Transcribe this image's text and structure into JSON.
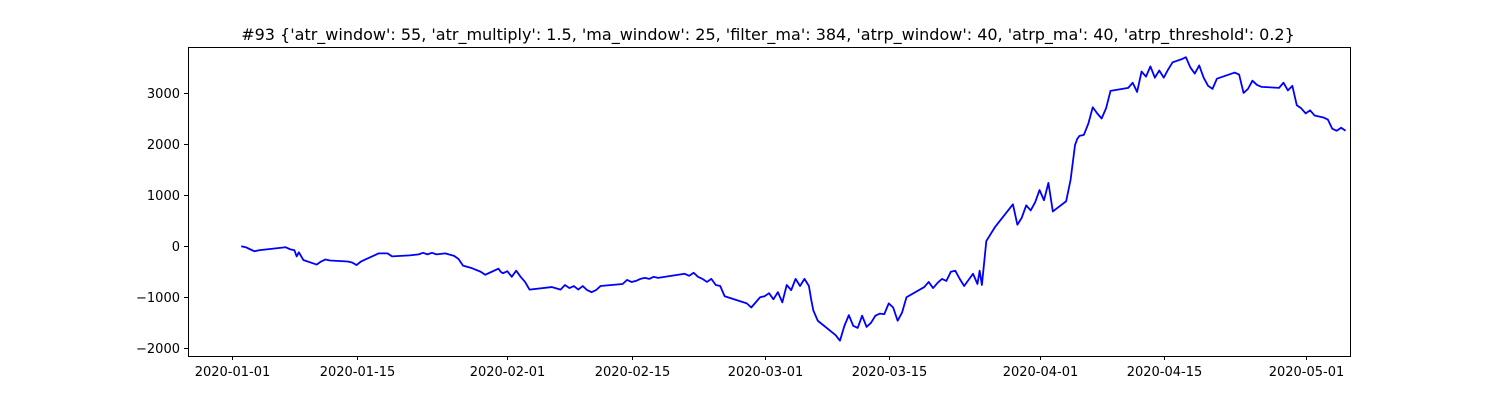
{
  "chart_data": {
    "type": "line",
    "title": "#93 {'atr_window': 55, 'atr_multiply': 1.5, 'ma_window': 25, 'filter_ma': 384, 'atrp_window': 40, 'atrp_ma': 40, 'atrp_threshold': 0.2}",
    "xlabel": "",
    "ylabel": "",
    "x_ticks": [
      "2020-01-01",
      "2020-01-15",
      "2020-02-01",
      "2020-02-15",
      "2020-03-01",
      "2020-03-15",
      "2020-04-01",
      "2020-04-15",
      "2020-05-01"
    ],
    "y_ticks": [
      -2000,
      -1000,
      0,
      1000,
      2000,
      3000
    ],
    "xlim": [
      "2019-12-27",
      "2020-05-06"
    ],
    "ylim": [
      -2150,
      3900
    ],
    "grid": false,
    "series": [
      {
        "color": "#0000ff",
        "points": [
          [
            "2020-01-02",
            0
          ],
          [
            "2020-01-02 12:00",
            -20
          ],
          [
            "2020-01-03",
            -60
          ],
          [
            "2020-01-03 12:00",
            -100
          ],
          [
            "2020-01-04",
            -80
          ],
          [
            "2020-01-07",
            -20
          ],
          [
            "2020-01-07 12:00",
            -60
          ],
          [
            "2020-01-08",
            -80
          ],
          [
            "2020-01-08 06:00",
            -200
          ],
          [
            "2020-01-08 12:00",
            -120
          ],
          [
            "2020-01-09",
            -270
          ],
          [
            "2020-01-10",
            -330
          ],
          [
            "2020-01-10 12:00",
            -360
          ],
          [
            "2020-01-11",
            -300
          ],
          [
            "2020-01-11 12:00",
            -260
          ],
          [
            "2020-01-12",
            -280
          ],
          [
            "2020-01-14",
            -300
          ],
          [
            "2020-01-14 12:00",
            -320
          ],
          [
            "2020-01-15",
            -370
          ],
          [
            "2020-01-15 12:00",
            -300
          ],
          [
            "2020-01-16",
            -260
          ],
          [
            "2020-01-17",
            -180
          ],
          [
            "2020-01-17 12:00",
            -140
          ],
          [
            "2020-01-18 12:00",
            -140
          ],
          [
            "2020-01-19",
            -200
          ],
          [
            "2020-01-21",
            -180
          ],
          [
            "2020-01-22",
            -160
          ],
          [
            "2020-01-22 12:00",
            -130
          ],
          [
            "2020-01-23",
            -160
          ],
          [
            "2020-01-23 12:00",
            -130
          ],
          [
            "2020-01-24",
            -160
          ],
          [
            "2020-01-25",
            -140
          ],
          [
            "2020-01-26",
            -190
          ],
          [
            "2020-01-26 12:00",
            -250
          ],
          [
            "2020-01-27",
            -380
          ],
          [
            "2020-01-28",
            -430
          ],
          [
            "2020-01-29",
            -500
          ],
          [
            "2020-01-29 12:00",
            -560
          ],
          [
            "2020-01-30",
            -520
          ],
          [
            "2020-01-31",
            -440
          ],
          [
            "2020-01-31 06:00",
            -500
          ],
          [
            "2020-01-31 12:00",
            -530
          ],
          [
            "2020-02-01",
            -490
          ],
          [
            "2020-02-01 12:00",
            -600
          ],
          [
            "2020-02-02",
            -480
          ],
          [
            "2020-02-02 12:00",
            -600
          ],
          [
            "2020-02-03",
            -700
          ],
          [
            "2020-02-03 12:00",
            -850
          ],
          [
            "2020-02-06",
            -800
          ],
          [
            "2020-02-07",
            -850
          ],
          [
            "2020-02-07 12:00",
            -760
          ],
          [
            "2020-02-08",
            -820
          ],
          [
            "2020-02-08 12:00",
            -780
          ],
          [
            "2020-02-09",
            -850
          ],
          [
            "2020-02-09 12:00",
            -780
          ],
          [
            "2020-02-10",
            -860
          ],
          [
            "2020-02-10 12:00",
            -900
          ],
          [
            "2020-02-11",
            -860
          ],
          [
            "2020-02-11 12:00",
            -780
          ],
          [
            "2020-02-14",
            -740
          ],
          [
            "2020-02-14 12:00",
            -660
          ],
          [
            "2020-02-15",
            -700
          ],
          [
            "2020-02-15 12:00",
            -680
          ],
          [
            "2020-02-16",
            -640
          ],
          [
            "2020-02-16 12:00",
            -620
          ],
          [
            "2020-02-17",
            -640
          ],
          [
            "2020-02-17 12:00",
            -600
          ],
          [
            "2020-02-18",
            -620
          ],
          [
            "2020-02-21",
            -540
          ],
          [
            "2020-02-21 12:00",
            -580
          ],
          [
            "2020-02-22",
            -520
          ],
          [
            "2020-02-22 12:00",
            -600
          ],
          [
            "2020-02-23",
            -640
          ],
          [
            "2020-02-23 12:00",
            -700
          ],
          [
            "2020-02-24",
            -640
          ],
          [
            "2020-02-24 12:00",
            -760
          ],
          [
            "2020-02-25",
            -780
          ],
          [
            "2020-02-25 12:00",
            -980
          ],
          [
            "2020-02-28",
            -1120
          ],
          [
            "2020-02-28 12:00",
            -1200
          ],
          [
            "2020-02-29",
            -1100
          ],
          [
            "2020-02-29 12:00",
            -1000
          ],
          [
            "2020-03-01",
            -980
          ],
          [
            "2020-03-01 12:00",
            -920
          ],
          [
            "2020-03-02",
            -1040
          ],
          [
            "2020-03-02 12:00",
            -900
          ],
          [
            "2020-03-03",
            -1100
          ],
          [
            "2020-03-03 12:00",
            -760
          ],
          [
            "2020-03-04",
            -860
          ],
          [
            "2020-03-04 12:00",
            -640
          ],
          [
            "2020-03-05",
            -780
          ],
          [
            "2020-03-05 12:00",
            -640
          ],
          [
            "2020-03-06",
            -780
          ],
          [
            "2020-03-06 06:00",
            -1040
          ],
          [
            "2020-03-06 12:00",
            -1260
          ],
          [
            "2020-03-07",
            -1460
          ],
          [
            "2020-03-09",
            -1740
          ],
          [
            "2020-03-09 12:00",
            -1850
          ],
          [
            "2020-03-10",
            -1560
          ],
          [
            "2020-03-10 12:00",
            -1350
          ],
          [
            "2020-03-11",
            -1560
          ],
          [
            "2020-03-11 12:00",
            -1600
          ],
          [
            "2020-03-12",
            -1360
          ],
          [
            "2020-03-12 12:00",
            -1580
          ],
          [
            "2020-03-13",
            -1500
          ],
          [
            "2020-03-13 12:00",
            -1360
          ],
          [
            "2020-03-14",
            -1320
          ],
          [
            "2020-03-14 12:00",
            -1330
          ],
          [
            "2020-03-15",
            -1120
          ],
          [
            "2020-03-15 12:00",
            -1200
          ],
          [
            "2020-03-16",
            -1460
          ],
          [
            "2020-03-16 12:00",
            -1300
          ],
          [
            "2020-03-17",
            -1000
          ],
          [
            "2020-03-19",
            -800
          ],
          [
            "2020-03-19 12:00",
            -700
          ],
          [
            "2020-03-20",
            -820
          ],
          [
            "2020-03-20 12:00",
            -720
          ],
          [
            "2020-03-21",
            -640
          ],
          [
            "2020-03-21 12:00",
            -680
          ],
          [
            "2020-03-22",
            -500
          ],
          [
            "2020-03-22 12:00",
            -480
          ],
          [
            "2020-03-23",
            -640
          ],
          [
            "2020-03-23 12:00",
            -780
          ],
          [
            "2020-03-24",
            -660
          ],
          [
            "2020-03-24 12:00",
            -540
          ],
          [
            "2020-03-25",
            -740
          ],
          [
            "2020-03-25 06:00",
            -480
          ],
          [
            "2020-03-25 12:00",
            -760
          ],
          [
            "2020-03-26",
            100
          ],
          [
            "2020-03-27",
            380
          ],
          [
            "2020-03-29",
            820
          ],
          [
            "2020-03-29 12:00",
            420
          ],
          [
            "2020-03-30",
            560
          ],
          [
            "2020-03-30 12:00",
            800
          ],
          [
            "2020-03-31",
            700
          ],
          [
            "2020-03-31 12:00",
            860
          ],
          [
            "2020-04-01",
            1100
          ],
          [
            "2020-04-01 12:00",
            900
          ],
          [
            "2020-04-02",
            1240
          ],
          [
            "2020-04-02 12:00",
            680
          ],
          [
            "2020-04-04",
            880
          ],
          [
            "2020-04-04 12:00",
            1300
          ],
          [
            "2020-04-05",
            1980
          ],
          [
            "2020-04-05 06:00",
            2100
          ],
          [
            "2020-04-05 12:00",
            2160
          ],
          [
            "2020-04-06",
            2180
          ],
          [
            "2020-04-06 12:00",
            2400
          ],
          [
            "2020-04-07",
            2720
          ],
          [
            "2020-04-07 12:00",
            2600
          ],
          [
            "2020-04-08",
            2500
          ],
          [
            "2020-04-08 12:00",
            2700
          ],
          [
            "2020-04-09",
            3040
          ],
          [
            "2020-04-11",
            3100
          ],
          [
            "2020-04-11 12:00",
            3200
          ],
          [
            "2020-04-12",
            3020
          ],
          [
            "2020-04-12 12:00",
            3420
          ],
          [
            "2020-04-13",
            3320
          ],
          [
            "2020-04-13 12:00",
            3520
          ],
          [
            "2020-04-14",
            3300
          ],
          [
            "2020-04-14 12:00",
            3440
          ],
          [
            "2020-04-15",
            3300
          ],
          [
            "2020-04-15 12:00",
            3460
          ],
          [
            "2020-04-16",
            3600
          ],
          [
            "2020-04-17",
            3660
          ],
          [
            "2020-04-17 12:00",
            3700
          ],
          [
            "2020-04-18",
            3500
          ],
          [
            "2020-04-18 12:00",
            3380
          ],
          [
            "2020-04-19",
            3540
          ],
          [
            "2020-04-19 12:00",
            3300
          ],
          [
            "2020-04-20",
            3140
          ],
          [
            "2020-04-20 12:00",
            3080
          ],
          [
            "2020-04-21",
            3280
          ],
          [
            "2020-04-23",
            3400
          ],
          [
            "2020-04-23 12:00",
            3360
          ],
          [
            "2020-04-24",
            3000
          ],
          [
            "2020-04-24 12:00",
            3080
          ],
          [
            "2020-04-25",
            3240
          ],
          [
            "2020-04-25 12:00",
            3160
          ],
          [
            "2020-04-26",
            3120
          ],
          [
            "2020-04-28",
            3100
          ],
          [
            "2020-04-28 12:00",
            3200
          ],
          [
            "2020-04-29",
            3050
          ],
          [
            "2020-04-29 12:00",
            3140
          ],
          [
            "2020-04-30",
            2760
          ],
          [
            "2020-04-30 12:00",
            2700
          ],
          [
            "2020-05-01",
            2600
          ],
          [
            "2020-05-01 12:00",
            2660
          ],
          [
            "2020-05-02",
            2560
          ],
          [
            "2020-05-03",
            2520
          ],
          [
            "2020-05-03 12:00",
            2480
          ],
          [
            "2020-05-04",
            2300
          ],
          [
            "2020-05-04 12:00",
            2260
          ],
          [
            "2020-05-05",
            2320
          ],
          [
            "2020-05-05 12:00",
            2260
          ]
        ]
      }
    ]
  }
}
